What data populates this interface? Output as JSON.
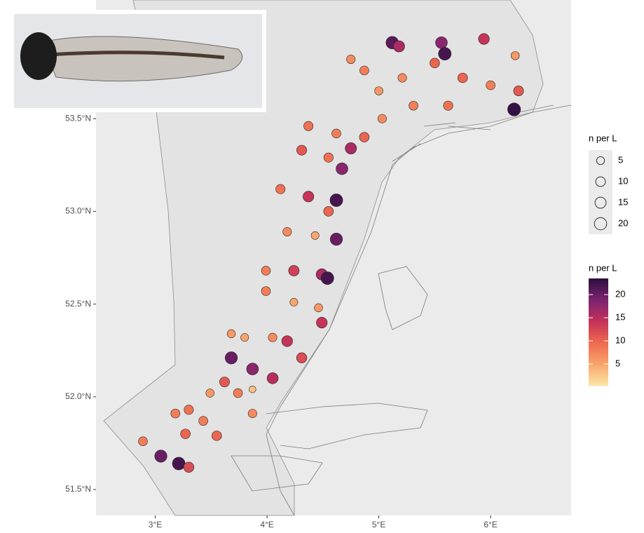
{
  "chart_data": {
    "type": "scatter",
    "xlim": [
      2.47,
      6.72
    ],
    "ylim": [
      51.36,
      54.14
    ],
    "xticks": [
      {
        "value": 3,
        "label": "3°E"
      },
      {
        "value": 4,
        "label": "4°E"
      },
      {
        "value": 5,
        "label": "5°E"
      },
      {
        "value": 6,
        "label": "6°E"
      }
    ],
    "yticks": [
      {
        "value": 51.5,
        "label": "51.5°N"
      },
      {
        "value": 52.0,
        "label": "52.0°N"
      },
      {
        "value": 52.5,
        "label": "52.5°N"
      },
      {
        "value": 53.0,
        "label": "53.0°N"
      },
      {
        "value": 53.5,
        "label": "53.5°N"
      }
    ],
    "grid": true,
    "x": [
      2.89,
      3.05,
      3.21,
      3.3,
      3.27,
      3.18,
      3.3,
      3.43,
      3.55,
      3.49,
      3.62,
      3.74,
      3.87,
      3.68,
      3.87,
      4.05,
      3.87,
      3.68,
      3.8,
      4.05,
      4.18,
      4.31,
      3.99,
      4.24,
      4.46,
      4.49,
      3.99,
      4.24,
      4.49,
      4.54,
      4.18,
      4.43,
      4.62,
      4.12,
      4.37,
      4.62,
      4.55,
      4.31,
      4.55,
      4.67,
      4.75,
      4.37,
      4.62,
      4.87,
      5.03,
      5.0,
      4.87,
      4.75,
      5.12,
      5.18,
      5.21,
      5.31,
      5.5,
      5.56,
      5.59,
      5.62,
      5.75,
      5.94,
      6.0,
      6.22,
      6.25,
      6.21
    ],
    "y": [
      51.76,
      51.68,
      51.64,
      51.62,
      51.8,
      51.91,
      51.93,
      51.87,
      51.79,
      52.02,
      52.08,
      52.02,
      51.91,
      52.21,
      52.15,
      52.1,
      52.04,
      52.34,
      52.32,
      52.32,
      52.3,
      52.21,
      52.57,
      52.51,
      52.48,
      52.4,
      52.68,
      52.68,
      52.66,
      52.64,
      52.89,
      52.87,
      52.85,
      53.12,
      53.08,
      53.06,
      53.0,
      53.33,
      53.29,
      53.23,
      53.34,
      53.46,
      53.42,
      53.4,
      53.5,
      53.65,
      53.76,
      53.82,
      53.91,
      53.89,
      53.72,
      53.57,
      53.8,
      53.91,
      53.85,
      53.57,
      53.72,
      53.93,
      53.68,
      53.84,
      53.65,
      53.55
    ],
    "values": [
      8,
      20,
      22,
      12,
      10,
      8,
      9,
      8,
      10,
      6,
      11,
      8,
      7,
      20,
      18,
      15,
      3,
      6,
      5,
      7,
      14,
      12,
      8,
      5,
      6,
      14,
      8,
      13,
      16,
      22,
      7,
      5,
      20,
      9,
      14,
      22,
      10,
      11,
      9,
      18,
      16,
      9,
      8,
      10,
      7,
      6,
      8,
      7,
      21,
      16,
      7,
      8,
      10,
      18,
      22,
      9,
      10,
      14,
      8,
      6,
      11,
      23
    ],
    "size_legend": {
      "title": "n per L",
      "values": [
        5,
        10,
        15,
        20
      ]
    },
    "color_legend": {
      "title": "n per L",
      "ticks": [
        5,
        10,
        15,
        20
      ],
      "lim": [
        0.3,
        23.5
      ],
      "colors": [
        "#fde7a9",
        "#f9a66c",
        "#ef6a4f",
        "#c4325a",
        "#7d2370",
        "#2c0f3e"
      ]
    }
  }
}
